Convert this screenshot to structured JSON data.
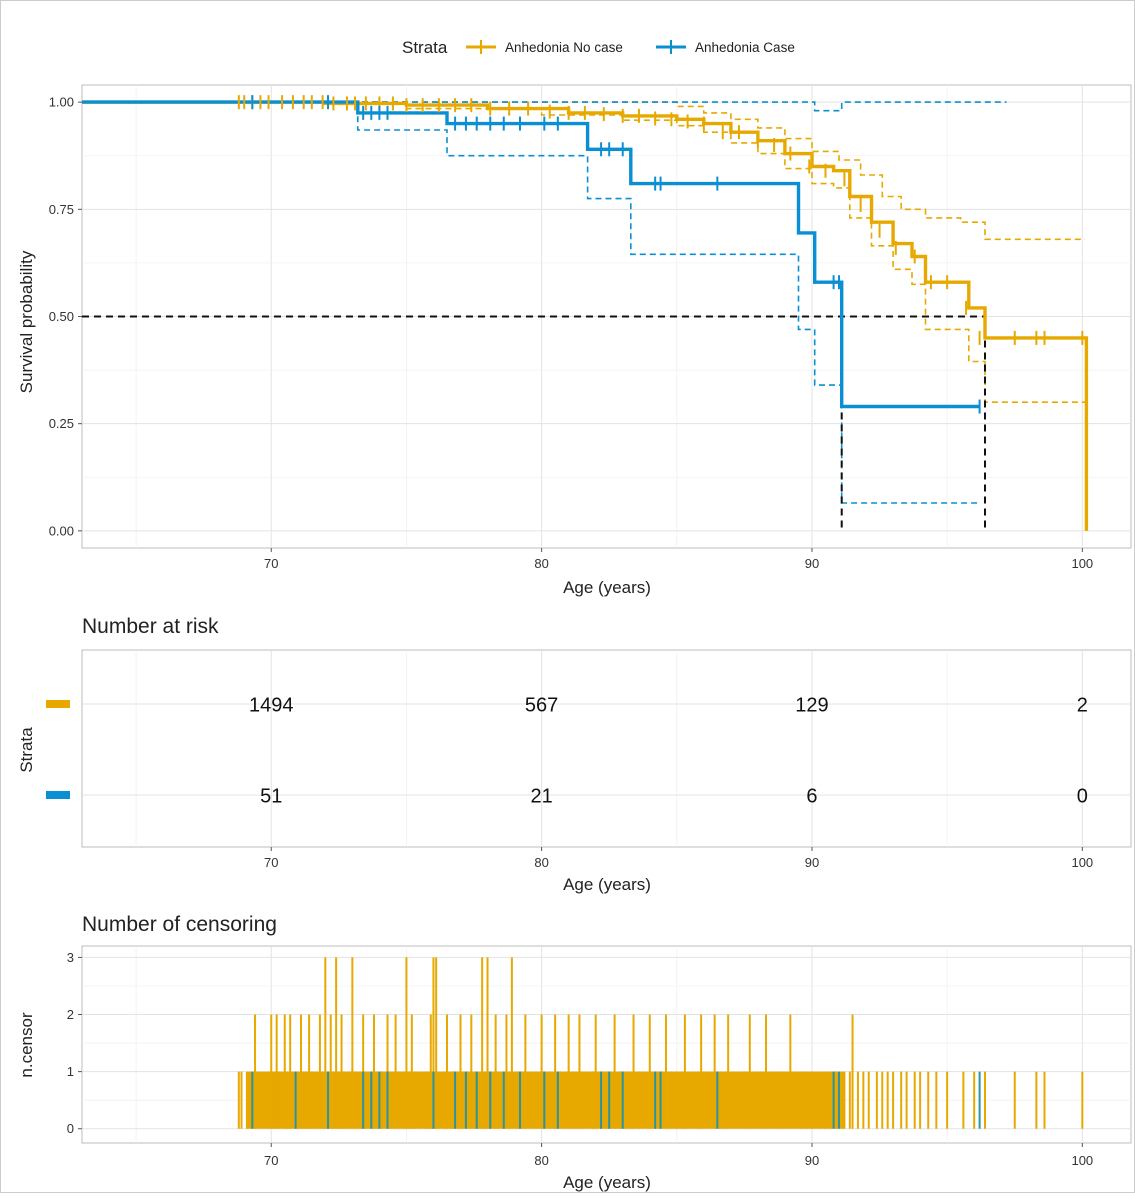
{
  "legend": {
    "title": "Strata",
    "items": [
      {
        "label": "Anhedonia No case",
        "color": "#E7A800"
      },
      {
        "label": "Anhedonia Case",
        "color": "#0B8FD3"
      }
    ]
  },
  "chart_data": [
    {
      "type": "line",
      "name": "survival",
      "xlabel": "Age (years)",
      "ylabel": "Survival probability",
      "xlim": [
        63,
        101.8
      ],
      "ylim": [
        -0.04,
        1.04
      ],
      "x_ticks": [
        70,
        80,
        90,
        100
      ],
      "y_ticks": [
        0,
        0.25,
        0.5,
        0.75,
        1
      ],
      "y_tick_labels": [
        "0.00",
        "0.25",
        "0.50",
        "0.75",
        "1.00"
      ],
      "grid": true,
      "legend_position": "top",
      "median_line": {
        "y": 0.5,
        "x_values": [
          91.1,
          96.4
        ]
      },
      "series": [
        {
          "name": "Anhedonia No case",
          "color": "#E7A800",
          "steps": [
            [
              63,
              1.0
            ],
            [
              72,
              0.997
            ],
            [
              75,
              0.993
            ],
            [
              78,
              0.985
            ],
            [
              81,
              0.975
            ],
            [
              83,
              0.968
            ],
            [
              85,
              0.96
            ],
            [
              86,
              0.95
            ],
            [
              87,
              0.93
            ],
            [
              88,
              0.91
            ],
            [
              89,
              0.88
            ],
            [
              90,
              0.85
            ],
            [
              90.8,
              0.84
            ],
            [
              91.4,
              0.78
            ],
            [
              92.2,
              0.72
            ],
            [
              93,
              0.67
            ],
            [
              93.7,
              0.64
            ],
            [
              94.2,
              0.58
            ],
            [
              95.8,
              0.52
            ],
            [
              96.4,
              0.45
            ],
            [
              100.1,
              0.45
            ],
            [
              100.15,
              0.0
            ]
          ],
          "upper": [
            [
              63,
              1.0
            ],
            [
              80,
              1.0
            ],
            [
              85,
              0.99
            ],
            [
              86,
              0.975
            ],
            [
              87,
              0.96
            ],
            [
              88,
              0.94
            ],
            [
              89,
              0.915
            ],
            [
              90,
              0.885
            ],
            [
              91,
              0.865
            ],
            [
              91.8,
              0.83
            ],
            [
              92.6,
              0.78
            ],
            [
              93.3,
              0.75
            ],
            [
              94.2,
              0.73
            ],
            [
              95.5,
              0.72
            ],
            [
              96.4,
              0.68
            ],
            [
              100.1,
              0.68
            ]
          ],
          "lower": [
            [
              63,
              1.0
            ],
            [
              75,
              0.985
            ],
            [
              80,
              0.97
            ],
            [
              83,
              0.958
            ],
            [
              85,
              0.945
            ],
            [
              86,
              0.93
            ],
            [
              87,
              0.905
            ],
            [
              88,
              0.88
            ],
            [
              89,
              0.845
            ],
            [
              90,
              0.81
            ],
            [
              90.8,
              0.8
            ],
            [
              91.4,
              0.73
            ],
            [
              92.2,
              0.665
            ],
            [
              93,
              0.61
            ],
            [
              93.7,
              0.575
            ],
            [
              94.2,
              0.47
            ],
            [
              95.8,
              0.395
            ],
            [
              96.4,
              0.3
            ],
            [
              100.1,
              0.3
            ]
          ],
          "censor_x": [
            68.8,
            69.0,
            69.3,
            69.6,
            69.9,
            70.4,
            70.8,
            71.2,
            71.5,
            71.9,
            72.3,
            72.8,
            73.1,
            73.5,
            74.0,
            74.5,
            75.0,
            75.6,
            76.2,
            76.8,
            77.4,
            78.1,
            78.8,
            79.5,
            80.3,
            81.0,
            81.6,
            82.3,
            83.0,
            83.6,
            84.2,
            84.8,
            85.4,
            86.0,
            86.7,
            87.3,
            88.0,
            88.6,
            89.2,
            89.9,
            90.5,
            91.2,
            91.8,
            92.5,
            93.1,
            93.8,
            94.4,
            95.0,
            95.7,
            96.2,
            97.5,
            98.3,
            98.6,
            100.0
          ],
          "censor_y": [
            1.0,
            1.0,
            1.0,
            1.0,
            1.0,
            1.0,
            1.0,
            1.0,
            1.0,
            1.0,
            0.997,
            0.997,
            0.997,
            0.997,
            0.997,
            0.997,
            0.993,
            0.993,
            0.993,
            0.993,
            0.993,
            0.985,
            0.985,
            0.985,
            0.978,
            0.975,
            0.975,
            0.972,
            0.968,
            0.968,
            0.962,
            0.96,
            0.955,
            0.95,
            0.93,
            0.93,
            0.91,
            0.9,
            0.88,
            0.85,
            0.84,
            0.82,
            0.76,
            0.7,
            0.66,
            0.64,
            0.58,
            0.58,
            0.52,
            0.45,
            0.45,
            0.45,
            0.45,
            0.45
          ]
        },
        {
          "name": "Anhedonia Case",
          "color": "#0B8FD3",
          "steps": [
            [
              63,
              1.0
            ],
            [
              73.2,
              0.975
            ],
            [
              76.5,
              0.95
            ],
            [
              81.7,
              0.89
            ],
            [
              83.3,
              0.81
            ],
            [
              89.5,
              0.695
            ],
            [
              90.1,
              0.58
            ],
            [
              91.1,
              0.29
            ],
            [
              96.2,
              0.29
            ]
          ],
          "upper": [
            [
              63,
              1.0
            ],
            [
              90,
              1.0
            ],
            [
              90.1,
              0.98
            ],
            [
              91.1,
              0.98
            ],
            [
              91.1,
              1.0
            ],
            [
              97.2,
              1.0
            ]
          ],
          "lower": [
            [
              63,
              1.0
            ],
            [
              73.2,
              0.935
            ],
            [
              76.5,
              0.875
            ],
            [
              81.7,
              0.775
            ],
            [
              83.3,
              0.645
            ],
            [
              89.5,
              0.47
            ],
            [
              90.1,
              0.34
            ],
            [
              91.1,
              0.065
            ],
            [
              96.2,
              0.065
            ]
          ],
          "censor_x": [
            69.3,
            72.1,
            73.4,
            73.7,
            74.0,
            74.3,
            76.8,
            77.2,
            77.6,
            78.1,
            78.6,
            79.2,
            80.1,
            80.6,
            82.2,
            82.5,
            83.0,
            84.2,
            84.4,
            86.5,
            90.8,
            91.0,
            96.2
          ],
          "censor_y": [
            1.0,
            1.0,
            0.975,
            0.975,
            0.975,
            0.975,
            0.95,
            0.95,
            0.95,
            0.95,
            0.95,
            0.95,
            0.95,
            0.95,
            0.89,
            0.89,
            0.89,
            0.81,
            0.81,
            0.81,
            0.58,
            0.58,
            0.29
          ]
        }
      ]
    },
    {
      "type": "table",
      "name": "risk",
      "title": "Number at risk",
      "xlabel": "Age (years)",
      "ylabel": "Strata",
      "xlim": [
        63,
        101.8
      ],
      "x_ticks": [
        70,
        80,
        90,
        100
      ],
      "rows": [
        {
          "color": "#E7A800",
          "values": [
            "1494",
            "567",
            "129",
            "2"
          ]
        },
        {
          "color": "#0B8FD3",
          "values": [
            "51",
            "21",
            "6",
            "0"
          ]
        }
      ]
    },
    {
      "type": "bar",
      "name": "censor",
      "title": "Number of censoring",
      "xlabel": "Age (years)",
      "ylabel": "n.censor",
      "xlim": [
        63,
        101.8
      ],
      "ylim": [
        -0.25,
        3.2
      ],
      "x_ticks": [
        70,
        80,
        90,
        100
      ],
      "y_ticks": [
        0,
        1,
        2,
        3
      ],
      "colors": [
        "#E7A800",
        "#2A94A0"
      ],
      "no_case_count_3_x": [
        72.0,
        72.4,
        73.0,
        75.0,
        76.0,
        76.1,
        77.8,
        78.0,
        78.9
      ],
      "no_case_count_2_x": [
        69.4,
        70.0,
        70.2,
        70.5,
        70.7,
        71.1,
        71.4,
        71.8,
        72.2,
        72.6,
        73.4,
        73.8,
        74.3,
        74.6,
        75.2,
        75.9,
        76.5,
        77.0,
        77.4,
        78.3,
        78.7,
        79.4,
        80.0,
        80.5,
        81.0,
        81.4,
        82.0,
        82.7,
        83.4,
        84.0,
        84.6,
        85.3,
        85.9,
        86.4,
        86.9,
        87.7,
        88.3,
        89.2,
        91.5
      ],
      "no_case_count_1_x": [
        68.8,
        68.9,
        69.1,
        69.3,
        69.5,
        69.7,
        69.9,
        70.1,
        70.3,
        70.6,
        70.9,
        71.0,
        71.2,
        71.3,
        71.5,
        71.6,
        71.9,
        72.1,
        72.3,
        72.5,
        72.7,
        72.9,
        73.1,
        73.3,
        73.5,
        73.7,
        73.9,
        74.1,
        74.4,
        74.7,
        74.9,
        75.1,
        75.3,
        75.5,
        75.7,
        75.8,
        76.2,
        76.4,
        76.7,
        76.9,
        77.1,
        77.3,
        77.6,
        77.9,
        78.1,
        78.4,
        78.6,
        78.8,
        79.1,
        79.3,
        79.6,
        79.8,
        80.1,
        80.3,
        80.7,
        80.9,
        81.2,
        81.5,
        81.7,
        81.9,
        82.2,
        82.4,
        82.9,
        83.1,
        83.3,
        83.6,
        83.8,
        84.2,
        84.4,
        84.8,
        85.0,
        85.2,
        85.6,
        85.8,
        86.1,
        86.6,
        86.8,
        87.1,
        87.3,
        87.5,
        87.9,
        88.1,
        88.5,
        88.7,
        88.9,
        89.4,
        89.6,
        89.8,
        90.0,
        90.3,
        90.5,
        90.7,
        90.9,
        91.2,
        91.4,
        91.7,
        91.9,
        92.1,
        92.4,
        92.6,
        92.8,
        93.0,
        93.3,
        93.5,
        93.8,
        94.0,
        94.3,
        94.6,
        95.0,
        95.6,
        96.0,
        96.4,
        97.5,
        98.3,
        98.6,
        100.0
      ],
      "case_count_1_x": [
        69.3,
        70.9,
        72.1,
        73.4,
        73.7,
        74.0,
        74.3,
        76.0,
        76.8,
        77.2,
        77.6,
        78.1,
        78.6,
        79.2,
        80.1,
        80.6,
        82.2,
        82.5,
        83.0,
        84.2,
        84.4,
        86.5,
        90.8,
        91.0,
        96.2
      ]
    }
  ]
}
